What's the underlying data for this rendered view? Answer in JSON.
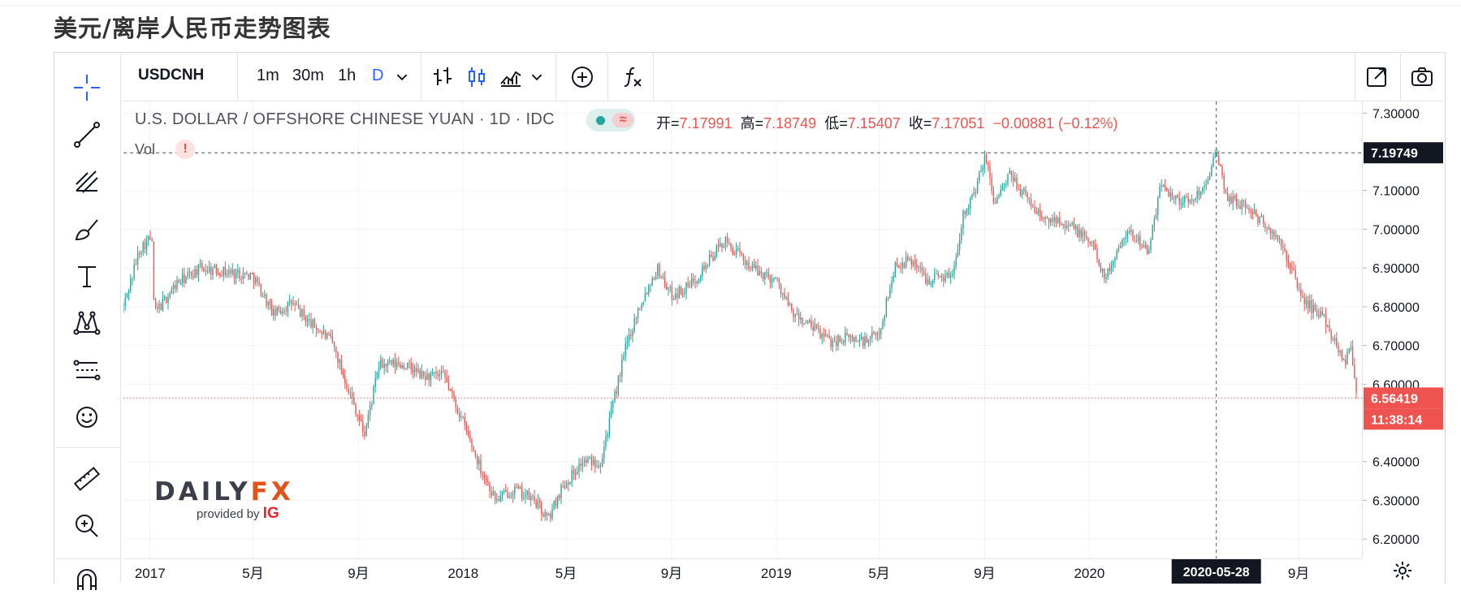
{
  "page_title": "美元/离岸人民币走势图表",
  "toolbar": {
    "symbol": "USDCNH",
    "intervals": [
      "1m",
      "30m",
      "1h",
      "D"
    ],
    "active_interval": "D"
  },
  "legend": {
    "instrument": "U.S. DOLLAR / OFFSHORE CHINESE YUAN · 1D · IDC",
    "wave_glyph": "≈",
    "open_label": "开=",
    "open": "7.17991",
    "high_label": "高=",
    "high": "7.18749",
    "low_label": "低=",
    "low": "7.15407",
    "close_label": "收=",
    "close": "7.17051",
    "change": "−0.00881 (−0.12%)",
    "vol_label": "Vol",
    "vol_alert": "!"
  },
  "watermark": {
    "brand_main": "DAILY",
    "brand_accent": "FX",
    "sub": "provided by",
    "sub_brand": "IG"
  },
  "colors": {
    "up": "#26a69a",
    "down": "#ef5350",
    "crosshair": "#555555",
    "last_price": "#ef5350",
    "active_blue": "#2962ff"
  },
  "chart_data": {
    "type": "candlestick",
    "title": "美元/离岸人民币走势图表",
    "symbol": "USDCNH",
    "interval": "1D",
    "ylim": [
      6.15,
      7.33
    ],
    "y_ticks": [
      "7.30000",
      "7.10000",
      "7.00000",
      "6.90000",
      "6.80000",
      "6.70000",
      "6.60000",
      "6.40000",
      "6.30000",
      "6.20000"
    ],
    "x_ticks": [
      "2017",
      "5月",
      "9月",
      "2018",
      "5月",
      "9月",
      "2019",
      "5月",
      "9月",
      "2020",
      "9月"
    ],
    "series": [
      {
        "points": [
          [
            "2016-12-01",
            6.8
          ],
          [
            "2016-12-20",
            6.95
          ],
          [
            "2017-01-03",
            6.98
          ],
          [
            "2017-01-06",
            6.78
          ],
          [
            "2017-02-01",
            6.86
          ],
          [
            "2017-03-01",
            6.9
          ],
          [
            "2017-04-01",
            6.89
          ],
          [
            "2017-05-01",
            6.88
          ],
          [
            "2017-05-25",
            6.78
          ],
          [
            "2017-06-15",
            6.81
          ],
          [
            "2017-07-01",
            6.77
          ],
          [
            "2017-08-01",
            6.71
          ],
          [
            "2017-09-08",
            6.47
          ],
          [
            "2017-09-25",
            6.65
          ],
          [
            "2017-10-25",
            6.65
          ],
          [
            "2017-11-15",
            6.62
          ],
          [
            "2017-12-10",
            6.62
          ],
          [
            "2018-01-01",
            6.5
          ],
          [
            "2018-01-20",
            6.39
          ],
          [
            "2018-02-08",
            6.3
          ],
          [
            "2018-03-01",
            6.33
          ],
          [
            "2018-03-25",
            6.3
          ],
          [
            "2018-04-10",
            6.25
          ],
          [
            "2018-04-25",
            6.33
          ],
          [
            "2018-05-20",
            6.4
          ],
          [
            "2018-06-10",
            6.4
          ],
          [
            "2018-06-25",
            6.55
          ],
          [
            "2018-07-10",
            6.7
          ],
          [
            "2018-07-25",
            6.8
          ],
          [
            "2018-08-15",
            6.9
          ],
          [
            "2018-09-01",
            6.83
          ],
          [
            "2018-09-20",
            6.85
          ],
          [
            "2018-10-15",
            6.92
          ],
          [
            "2018-11-01",
            6.97
          ],
          [
            "2018-11-20",
            6.93
          ],
          [
            "2018-12-10",
            6.89
          ],
          [
            "2019-01-01",
            6.87
          ],
          [
            "2019-01-20",
            6.78
          ],
          [
            "2019-02-10",
            6.75
          ],
          [
            "2019-03-05",
            6.71
          ],
          [
            "2019-03-25",
            6.72
          ],
          [
            "2019-04-15",
            6.71
          ],
          [
            "2019-05-01",
            6.73
          ],
          [
            "2019-05-20",
            6.91
          ],
          [
            "2019-06-10",
            6.92
          ],
          [
            "2019-06-25",
            6.87
          ],
          [
            "2019-07-10",
            6.88
          ],
          [
            "2019-07-25",
            6.88
          ],
          [
            "2019-08-08",
            7.05
          ],
          [
            "2019-08-20",
            7.09
          ],
          [
            "2019-09-02",
            7.19
          ],
          [
            "2019-09-12",
            7.07
          ],
          [
            "2019-10-01",
            7.14
          ],
          [
            "2019-10-20",
            7.08
          ],
          [
            "2019-11-10",
            7.02
          ],
          [
            "2019-11-25",
            7.03
          ],
          [
            "2019-12-15",
            7.0
          ],
          [
            "2020-01-05",
            6.96
          ],
          [
            "2020-01-20",
            6.87
          ],
          [
            "2020-02-10",
            6.99
          ],
          [
            "2020-02-25",
            6.98
          ],
          [
            "2020-03-10",
            6.94
          ],
          [
            "2020-03-25",
            7.12
          ],
          [
            "2020-04-10",
            7.08
          ],
          [
            "2020-04-25",
            7.07
          ],
          [
            "2020-05-10",
            7.1
          ],
          [
            "2020-05-28",
            7.19
          ],
          [
            "2020-06-10",
            7.08
          ],
          [
            "2020-07-01",
            7.06
          ],
          [
            "2020-07-20",
            7.02
          ],
          [
            "2020-08-05",
            6.98
          ],
          [
            "2020-08-20",
            6.92
          ],
          [
            "2020-09-05",
            6.82
          ],
          [
            "2020-09-20",
            6.79
          ],
          [
            "2020-10-01",
            6.77
          ],
          [
            "2020-10-15",
            6.7
          ],
          [
            "2020-10-25",
            6.66
          ],
          [
            "2020-11-01",
            6.7
          ],
          [
            "2020-11-08",
            6.56
          ]
        ]
      }
    ],
    "last_price": "6.56419",
    "countdown": "11:38:14",
    "crosshair": {
      "date": "2020-05-28",
      "price": "7.19749"
    }
  }
}
